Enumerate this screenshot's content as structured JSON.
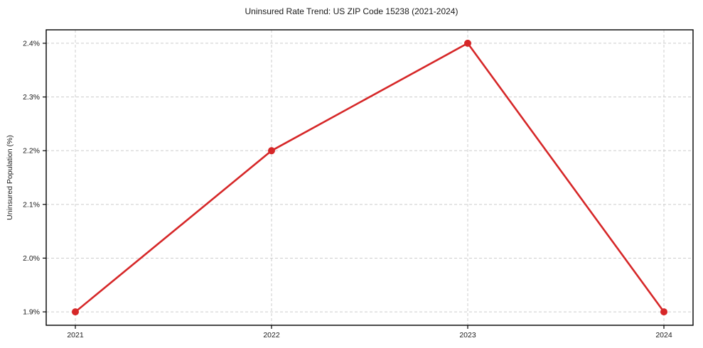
{
  "figure": {
    "title": "Uninsured Rate Trend: US ZIP Code 15238 (2021-2024)"
  },
  "chart_data": {
    "type": "line",
    "title": "Uninsured Rate Trend: US ZIP Code 15238 (2021-2024)",
    "categories": [
      "2021",
      "2022",
      "2023",
      "2024"
    ],
    "values": [
      1.9,
      2.2,
      2.4,
      1.9
    ],
    "xlabel": "",
    "ylabel": "Uninsured Population (%)",
    "yticks": [
      1.9,
      2.0,
      2.1,
      2.2,
      2.3,
      2.4
    ],
    "ytick_labels": [
      "1.9%",
      "2.0%",
      "2.1%",
      "2.2%",
      "2.3%",
      "2.4%"
    ],
    "ylim": [
      1.875,
      2.425
    ],
    "grid": true,
    "grid_style": "dashed",
    "legend": false,
    "line_color": "#d62728",
    "marker_color": "#d62728",
    "marker_shape": "circle",
    "grid_color": "#cccccc",
    "axis_color": "#000000",
    "text_color": "#1a1a1a",
    "background_color": "#ffffff"
  }
}
